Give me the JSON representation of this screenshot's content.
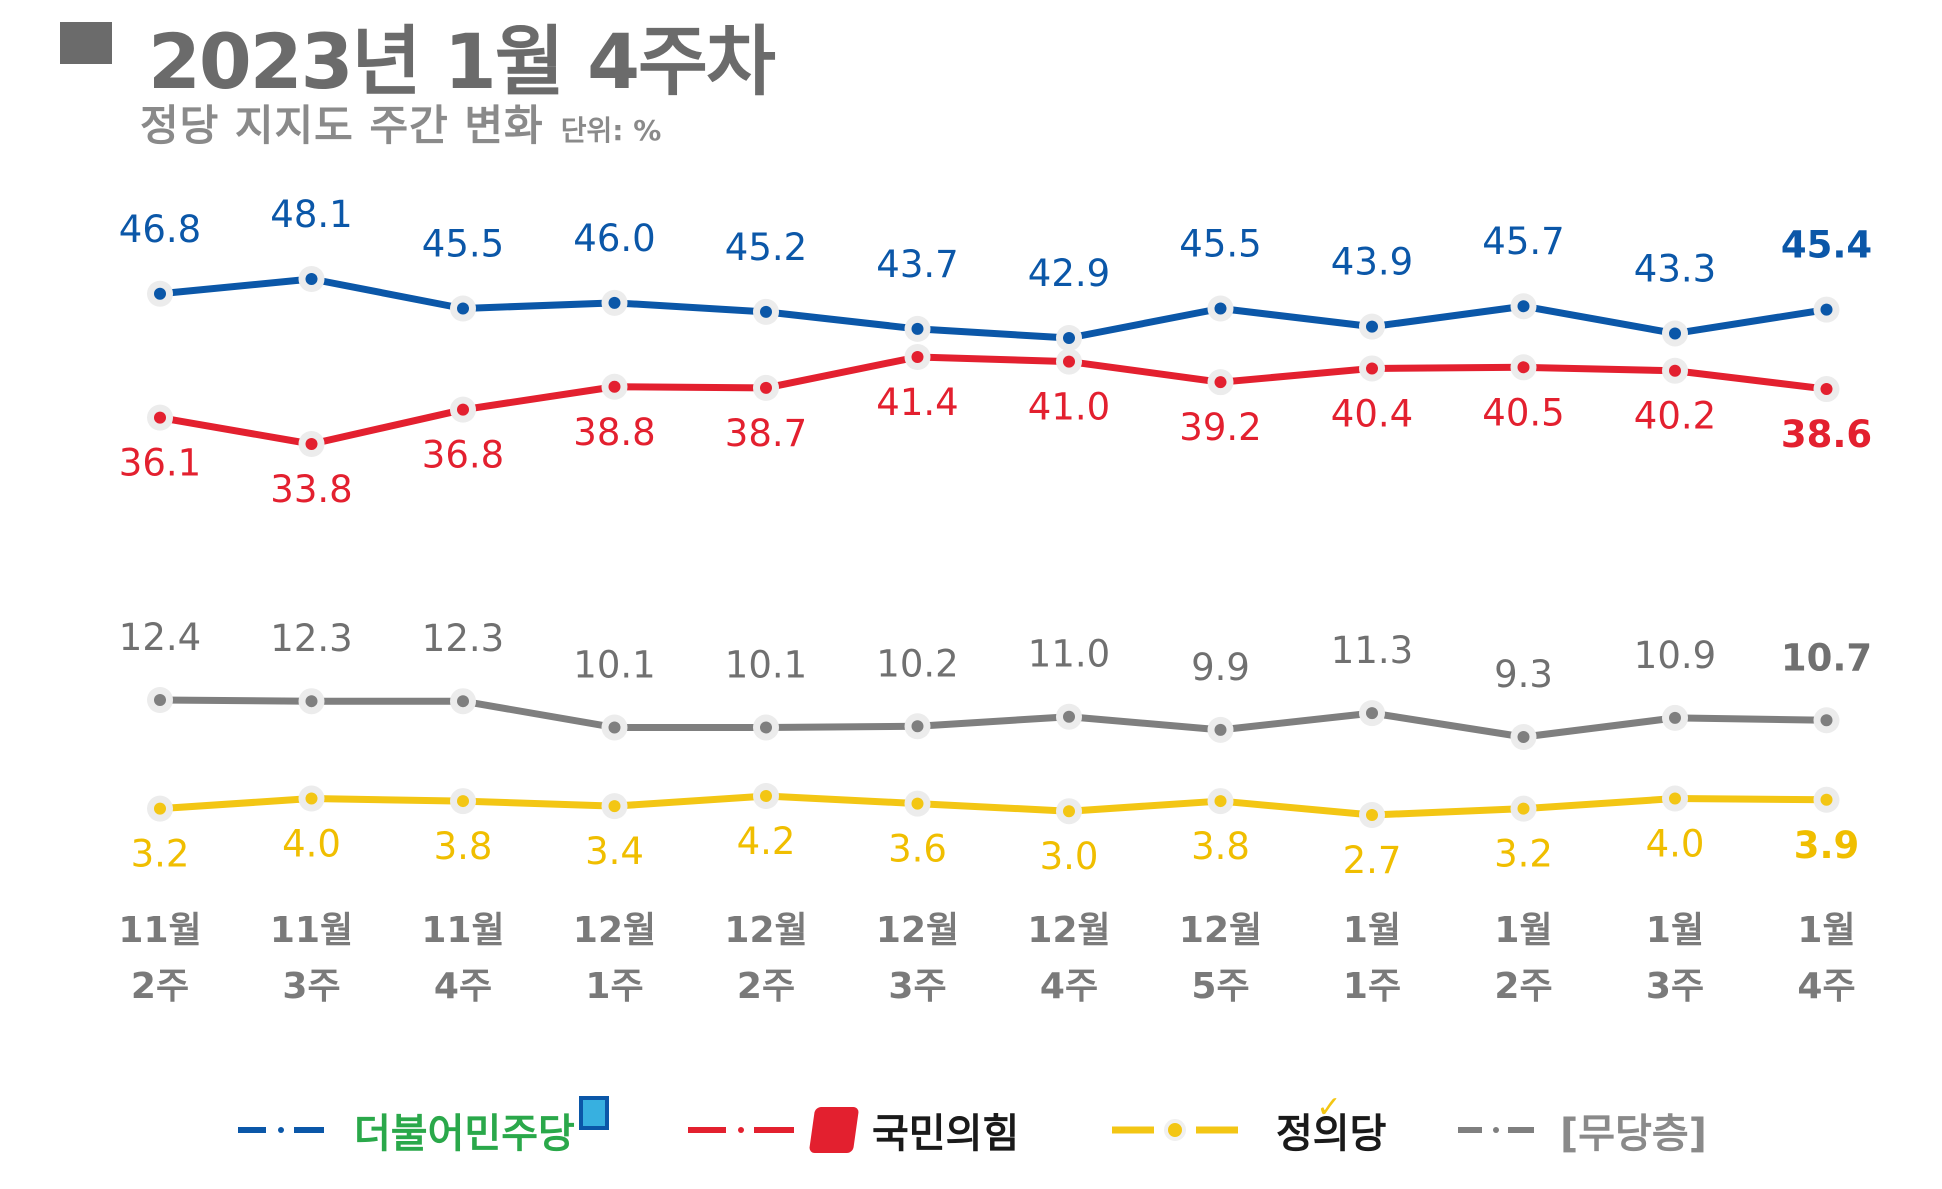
{
  "header": {
    "title": "2023년 1월 4주차",
    "subtitle": "정당 지지도 주간 변화",
    "unit": "단위: %"
  },
  "chart_data": {
    "type": "line",
    "title": "2023년 1월 4주차",
    "subtitle": "정당 지지도 주간 변화",
    "unit": "단위: %",
    "categories": [
      [
        "11월",
        "2주"
      ],
      [
        "11월",
        "3주"
      ],
      [
        "11월",
        "4주"
      ],
      [
        "12월",
        "1주"
      ],
      [
        "12월",
        "2주"
      ],
      [
        "12월",
        "3주"
      ],
      [
        "12월",
        "4주"
      ],
      [
        "12월",
        "5주"
      ],
      [
        "1월",
        "1주"
      ],
      [
        "1월",
        "2주"
      ],
      [
        "1월",
        "3주"
      ],
      [
        "1월",
        "4주"
      ]
    ],
    "series": [
      {
        "name": "더불어민주당",
        "color": "#0b57a8",
        "values": [
          46.8,
          48.1,
          45.5,
          46.0,
          45.2,
          43.7,
          42.9,
          45.5,
          43.9,
          45.7,
          43.3,
          45.4
        ]
      },
      {
        "name": "국민의힘",
        "color": "#e3202f",
        "values": [
          36.1,
          33.8,
          36.8,
          38.8,
          38.7,
          41.4,
          41.0,
          39.2,
          40.4,
          40.5,
          40.2,
          38.6
        ]
      },
      {
        "name": "[무당층]",
        "color": "#7f7f7f",
        "values": [
          12.4,
          12.3,
          12.3,
          10.1,
          10.1,
          10.2,
          11.0,
          9.9,
          11.3,
          9.3,
          10.9,
          10.7
        ]
      },
      {
        "name": "정의당",
        "color": "#f3c614",
        "values": [
          3.2,
          4.0,
          3.8,
          3.4,
          4.2,
          3.6,
          3.0,
          3.8,
          2.7,
          3.2,
          4.0,
          3.9
        ]
      }
    ],
    "legend": [
      "더불어민주당",
      "국민의힘",
      "정의당",
      "[무당층]"
    ]
  },
  "legend": {
    "items": [
      {
        "name": "더불어민주당",
        "color": "#0b57a8",
        "text_color": "#2aa84a"
      },
      {
        "name": "국민의힘",
        "color": "#e3202f",
        "text_color": "#1a1a1a"
      },
      {
        "name": "정의당",
        "color": "#f3c614",
        "text_color": "#1a1a1a"
      },
      {
        "name": "[무당층]",
        "color": "#7f7f7f",
        "text_color": "#8a8a8a"
      }
    ]
  }
}
